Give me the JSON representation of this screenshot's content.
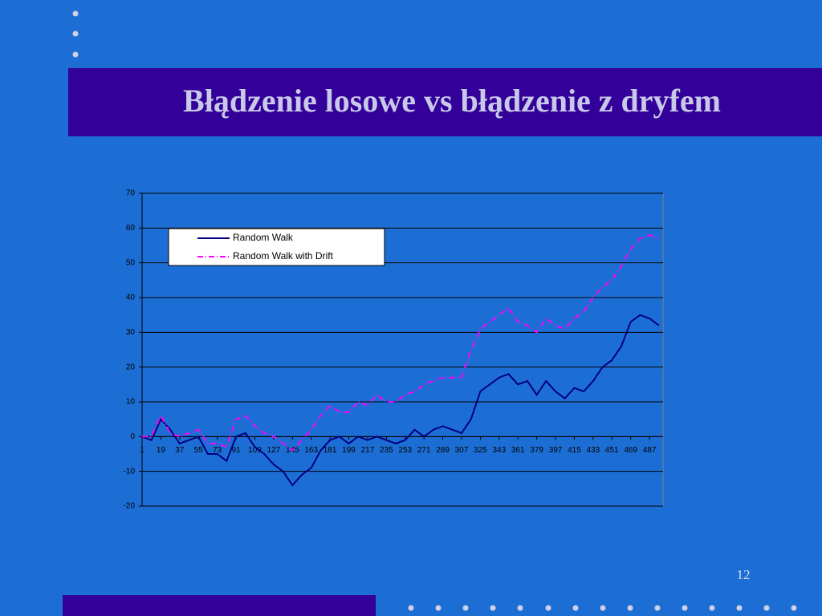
{
  "slide": {
    "title": "Błądzenie losowe vs błądzenie z dryfem",
    "page_number": "12"
  },
  "chart_data": {
    "type": "line",
    "x": [
      1,
      10,
      19,
      28,
      37,
      46,
      55,
      64,
      73,
      82,
      91,
      100,
      109,
      118,
      127,
      136,
      145,
      154,
      163,
      172,
      181,
      190,
      199,
      208,
      217,
      226,
      235,
      244,
      253,
      262,
      271,
      280,
      289,
      298,
      307,
      316,
      325,
      334,
      343,
      352,
      361,
      370,
      379,
      388,
      397,
      406,
      415,
      424,
      433,
      442,
      451,
      460,
      469,
      478,
      487,
      496
    ],
    "series": [
      {
        "name": "Random Walk",
        "color": "#000080",
        "dash": "solid",
        "values": [
          0,
          -1,
          5,
          2,
          -2,
          -1,
          0,
          -5,
          -5,
          -7,
          0,
          1,
          -3,
          -5,
          -8,
          -10,
          -14,
          -11,
          -9,
          -4,
          -1,
          0,
          -2,
          0,
          -1,
          0,
          -1,
          -2,
          -1,
          2,
          0,
          2,
          3,
          2,
          1,
          5,
          13,
          15,
          17,
          18,
          15,
          16,
          12,
          16,
          13,
          11,
          14,
          13,
          16,
          20,
          22,
          26,
          33,
          35,
          34,
          32
        ]
      },
      {
        "name": "Random Walk with Drift",
        "color": "#ff00ff",
        "dash": "dashdot",
        "values": [
          0,
          0,
          6,
          1,
          0,
          1,
          2,
          -2,
          -2,
          -3,
          5,
          6,
          3,
          1,
          0,
          -2,
          -4,
          -1,
          2,
          6,
          9,
          7,
          7,
          10,
          9,
          12,
          10,
          10,
          12,
          13,
          15,
          16,
          17,
          17,
          17,
          25,
          31,
          33,
          35,
          37,
          33,
          32,
          30,
          34,
          32,
          31,
          34,
          36,
          40,
          43,
          45,
          49,
          54,
          57,
          58,
          57
        ]
      }
    ],
    "xlim": [
      1,
      500
    ],
    "xticks": [
      1,
      19,
      37,
      55,
      73,
      91,
      109,
      127,
      145,
      163,
      181,
      199,
      217,
      235,
      253,
      271,
      289,
      307,
      325,
      343,
      361,
      379,
      397,
      415,
      433,
      451,
      469,
      487
    ],
    "ylim": [
      -20,
      70
    ],
    "yticks": [
      -20,
      -10,
      0,
      10,
      20,
      30,
      40,
      50,
      60,
      70
    ],
    "grid": true,
    "legend": "upper-left"
  }
}
